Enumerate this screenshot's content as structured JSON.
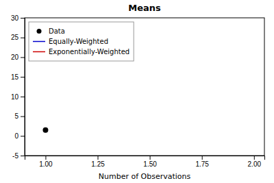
{
  "chart_data": {
    "type": "scatter",
    "title": "Means",
    "xlabel": "Number of Observations",
    "xlim": [
      0.9,
      2.05
    ],
    "ylim": [
      -5,
      30
    ],
    "xticks": [
      {
        "value": 1.0,
        "label": "1.00"
      },
      1.25,
      {
        "value": 1.5,
        "label": "1.50"
      },
      1.75,
      {
        "value": 2.0,
        "label": "2.00"
      }
    ],
    "yticks": [
      -5,
      0,
      5,
      10,
      15,
      20,
      25,
      30
    ],
    "grid": false,
    "legend": "upper left",
    "series": [
      {
        "name": "Data",
        "type": "scatter",
        "marker": "circle",
        "color": "#000000",
        "x": [
          1.0
        ],
        "values": [
          1.5
        ]
      },
      {
        "name": "Equally-Weighted",
        "type": "line",
        "line_style": "solid",
        "color": "#0000cc",
        "values": []
      },
      {
        "name": "Exponentially-Weighted",
        "type": "line",
        "line_style": "solid",
        "color": "#cc0000",
        "values": []
      }
    ]
  }
}
